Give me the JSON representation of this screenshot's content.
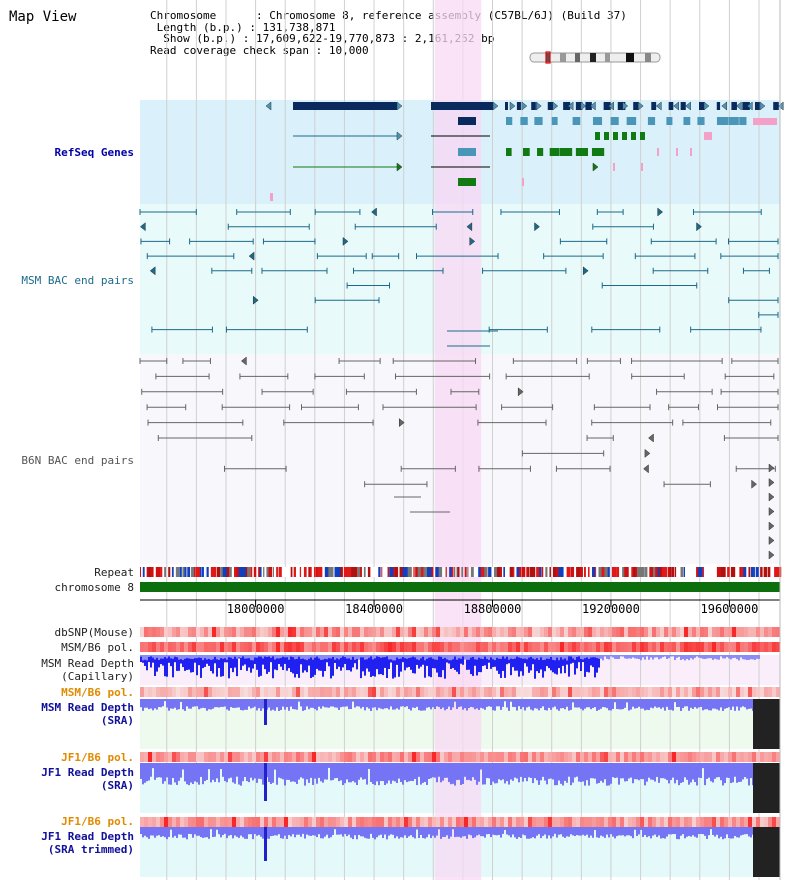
{
  "window": {
    "title": "Map View"
  },
  "info": {
    "chromosome_key": "Chromosome",
    "chromosome_val": "Chromosome 8, reference assembly (C57BL/6J) (Build 37)",
    "length_key": "Length (b.p.)",
    "length_val": "131,738,871",
    "show_key": "Show (b.p.)",
    "show_val": "17,609,622-19,770,873 : 2,161,252 bp",
    "span_key": "Read coverage check span",
    "span_val": "10,000"
  },
  "tracks": {
    "refseq": "RefSeq Genes",
    "msm_bac": "MSM BAC end pairs",
    "b6n_bac": "B6N BAC end pairs",
    "repeat": "Repeat",
    "chromosome": "chromosome 8",
    "dbsnp": "dbSNP(Mouse)",
    "msm_b6_pol_1": "MSM/B6 pol.",
    "msm_depth_cap_1": "MSM Read Depth",
    "msm_depth_cap_2": "(Capillary)",
    "msm_b6_pol_2": "MSM/B6 pol.",
    "msm_depth_sra_1": "MSM Read Depth",
    "msm_depth_sra_2": "(SRA)",
    "jf1_b6_pol_1": "JF1/B6 pol.",
    "jf1_depth_sra_1": "JF1 Read Depth",
    "jf1_depth_sra_2": "(SRA)",
    "jf1_b6_pol_2": "JF1/B6 pol.",
    "jf1_depth_trim_1": "JF1 Read Depth",
    "jf1_depth_trim_2": "(SRA trimmed)"
  },
  "axis": {
    "range": [
      17609622,
      19770873
    ],
    "ticks": [
      {
        "value": 18000000,
        "label": "18000000"
      },
      {
        "value": 18400000,
        "label": "18400000"
      },
      {
        "value": 18800000,
        "label": "18800000"
      },
      {
        "value": 19200000,
        "label": "19200000"
      },
      {
        "value": 19600000,
        "label": "19600000"
      }
    ]
  },
  "highlight": {
    "start": 18605000,
    "end": 18762000
  },
  "colors": {
    "highlight": "#f8d8f4",
    "refseq_bg": "#daf0fa",
    "bac_bg": "#e8fafa",
    "b6n_bg": "#f8f8fc",
    "gene_dark": "#0a2a5e",
    "gene_mid": "#4a96b8",
    "gene_green": "#127a12",
    "gene_pink": "#f4a0c8",
    "msm_pair": "#1a6a8a",
    "b6n_pair": "#666666",
    "chrom_bar": "#0d6e0d",
    "depth_blue": "#2020f0",
    "depth_light": "#7474f4",
    "depth_bg_green": "#eefaee",
    "depth_bg_cyan": "#e4fafa",
    "depth_bg_pink": "#faeefa"
  }
}
